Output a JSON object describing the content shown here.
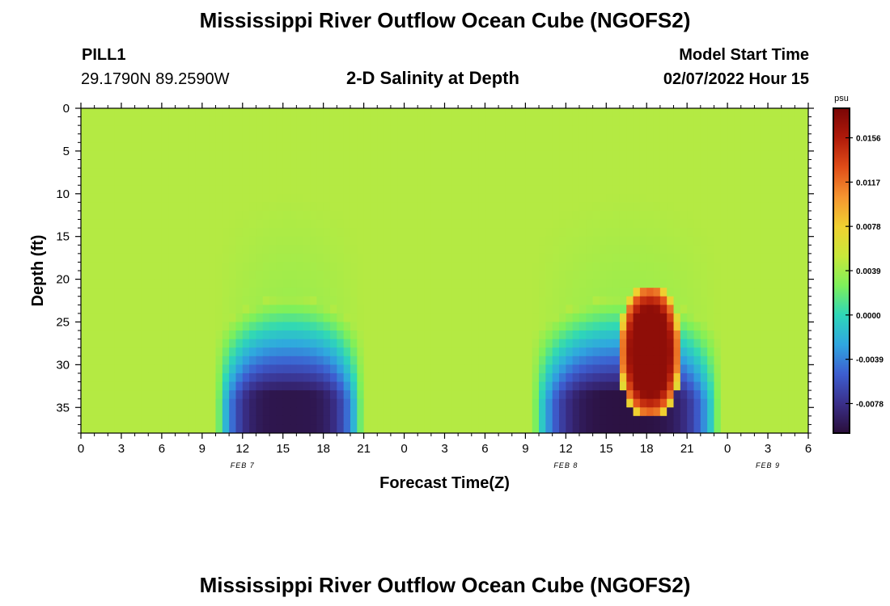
{
  "header": {
    "title": "Mississippi River Outflow Ocean Cube (NGOFS2)",
    "station": "PILL1",
    "coordinates": "29.1790N  89.2590W",
    "subtitle": "2-D Salinity at Depth",
    "model_start_label": "Model Start Time",
    "model_start_value": "02/07/2022 Hour 15"
  },
  "footer": {
    "title": "Mississippi River Outflow Ocean Cube (NGOFS2)"
  },
  "chart_data": {
    "type": "heatmap",
    "title": "2-D Salinity at Depth",
    "xlabel": "Forecast Time(Z)",
    "ylabel": "Depth (ft)",
    "x_tick_labels": [
      "0",
      "3",
      "6",
      "9",
      "12",
      "15",
      "18",
      "21",
      "0",
      "3",
      "6",
      "9",
      "12",
      "15",
      "18",
      "21",
      "0",
      "3",
      "6"
    ],
    "date_labels": [
      {
        "label": "FEB 7",
        "at_hours": 12
      },
      {
        "label": "FEB 8",
        "at_hours": 36
      },
      {
        "label": "FEB 9",
        "at_hours": 51
      }
    ],
    "x_range_hours": [
      0,
      54
    ],
    "y_ticks": [
      0,
      5,
      10,
      15,
      20,
      25,
      30,
      35
    ],
    "y_range": [
      0,
      38
    ],
    "y_inverted": true,
    "colorbar": {
      "unit": "psu",
      "tick_labels": [
        "0.0156",
        "0.0117",
        "0.0078",
        "0.0039",
        "0.0000",
        "-0.0039",
        "-0.0078"
      ],
      "tick_values": [
        0.0156,
        0.0117,
        0.0078,
        0.0039,
        0.0,
        -0.0039,
        -0.0078
      ],
      "range": [
        -0.0104,
        0.0182
      ],
      "colors": [
        "#2a0e3a",
        "#3a2f8a",
        "#3d5ed0",
        "#2fa6e0",
        "#2ed7b8",
        "#7ef05a",
        "#c8e83a",
        "#f0d030",
        "#f59530",
        "#e04d18",
        "#b01a0a",
        "#7a0606"
      ]
    },
    "background_value": 0.0045,
    "features": [
      {
        "name": "low salinity pocket",
        "time_start_h": 10,
        "time_end_h": 21,
        "depth_top_ft": 22,
        "depth_bottom_ft": 38,
        "min_value": -0.0098
      },
      {
        "name": "low salinity pocket",
        "time_start_h": 33.5,
        "time_end_h": 47.5,
        "depth_top_ft": 22,
        "depth_bottom_ft": 38,
        "min_value": -0.0101
      },
      {
        "name": "high salinity core",
        "time_start_h": 40,
        "time_end_h": 44.5,
        "depth_top_ft": 20.5,
        "depth_bottom_ft": 36.5,
        "max_value": 0.0172
      }
    ]
  }
}
